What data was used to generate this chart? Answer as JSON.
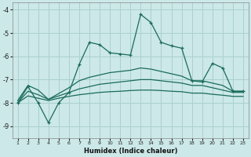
{
  "xlabel": "Humidex (Indice chaleur)",
  "background_color": "#cce8e8",
  "grid_color": "#aad0d0",
  "line_color": "#1a6b5a",
  "xlim": [
    0.5,
    23.5
  ],
  "ylim": [
    -9.5,
    -3.7
  ],
  "yticks": [
    -9,
    -8,
    -7,
    -6,
    -5,
    -4
  ],
  "xticks": [
    1,
    2,
    3,
    4,
    5,
    6,
    7,
    8,
    9,
    10,
    11,
    12,
    13,
    14,
    15,
    16,
    17,
    18,
    19,
    20,
    21,
    22,
    23
  ],
  "line1_x": [
    1,
    2,
    3,
    4,
    5,
    6,
    7,
    8,
    9,
    10,
    11,
    12,
    13,
    14,
    15,
    16,
    17,
    18,
    19,
    20,
    21,
    22,
    23
  ],
  "line1_y": [
    -8.0,
    -7.3,
    -8.0,
    -8.85,
    -8.0,
    -7.55,
    -6.35,
    -5.4,
    -5.5,
    -5.85,
    -5.9,
    -5.95,
    -4.2,
    -4.55,
    -5.4,
    -5.55,
    -5.65,
    -7.05,
    -7.1,
    -6.3,
    -6.5,
    -7.5,
    -7.5
  ],
  "line2_x": [
    1,
    2,
    3,
    4,
    5,
    6,
    7,
    8,
    9,
    10,
    11,
    12,
    13,
    14,
    15,
    16,
    17,
    18,
    19,
    20,
    21,
    22,
    23
  ],
  "line2_y": [
    -7.9,
    -7.25,
    -7.45,
    -7.85,
    -7.6,
    -7.35,
    -7.05,
    -6.9,
    -6.8,
    -6.7,
    -6.65,
    -6.6,
    -6.5,
    -6.55,
    -6.65,
    -6.75,
    -6.85,
    -7.05,
    -7.05,
    -7.15,
    -7.25,
    -7.5,
    -7.5
  ],
  "line3_x": [
    1,
    2,
    3,
    4,
    5,
    6,
    7,
    8,
    9,
    10,
    11,
    12,
    13,
    14,
    15,
    16,
    17,
    18,
    19,
    20,
    21,
    22,
    23
  ],
  "line3_y": [
    -8.0,
    -7.5,
    -7.65,
    -7.85,
    -7.7,
    -7.55,
    -7.4,
    -7.3,
    -7.2,
    -7.15,
    -7.1,
    -7.05,
    -7.0,
    -7.0,
    -7.05,
    -7.1,
    -7.15,
    -7.25,
    -7.25,
    -7.35,
    -7.45,
    -7.55,
    -7.55
  ],
  "line4_x": [
    1,
    2,
    3,
    4,
    5,
    6,
    7,
    8,
    9,
    10,
    11,
    12,
    13,
    14,
    15,
    16,
    17,
    18,
    19,
    20,
    21,
    22,
    23
  ],
  "line4_y": [
    -8.0,
    -7.7,
    -7.8,
    -7.9,
    -7.8,
    -7.72,
    -7.65,
    -7.6,
    -7.55,
    -7.52,
    -7.5,
    -7.47,
    -7.45,
    -7.45,
    -7.47,
    -7.5,
    -7.52,
    -7.58,
    -7.58,
    -7.63,
    -7.67,
    -7.72,
    -7.72
  ]
}
